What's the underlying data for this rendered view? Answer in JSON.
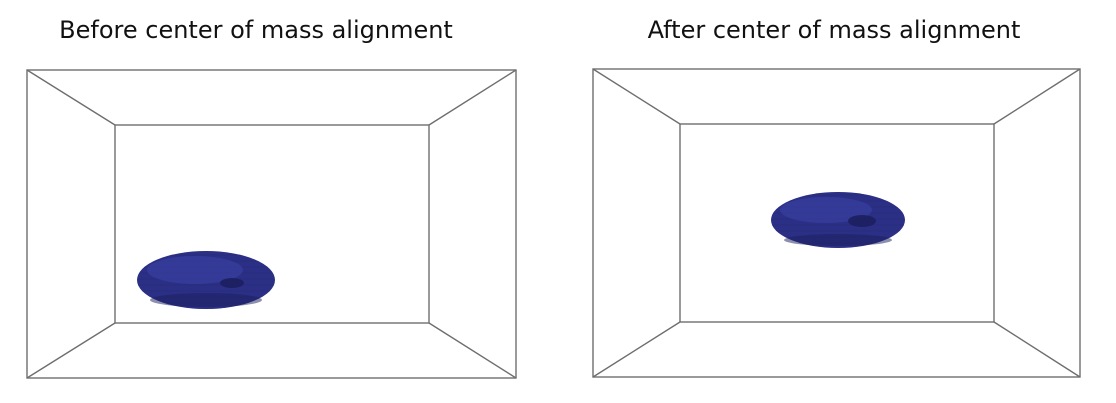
{
  "panels": [
    {
      "title": "Before center of mass alignment"
    },
    {
      "title": "After center of mass alignment"
    }
  ],
  "colors": {
    "box_line": "#6e6e6e",
    "blob_fill": "#2b2f85",
    "blob_dark": "#1c1f5e",
    "blob_light": "#3c43a8"
  }
}
